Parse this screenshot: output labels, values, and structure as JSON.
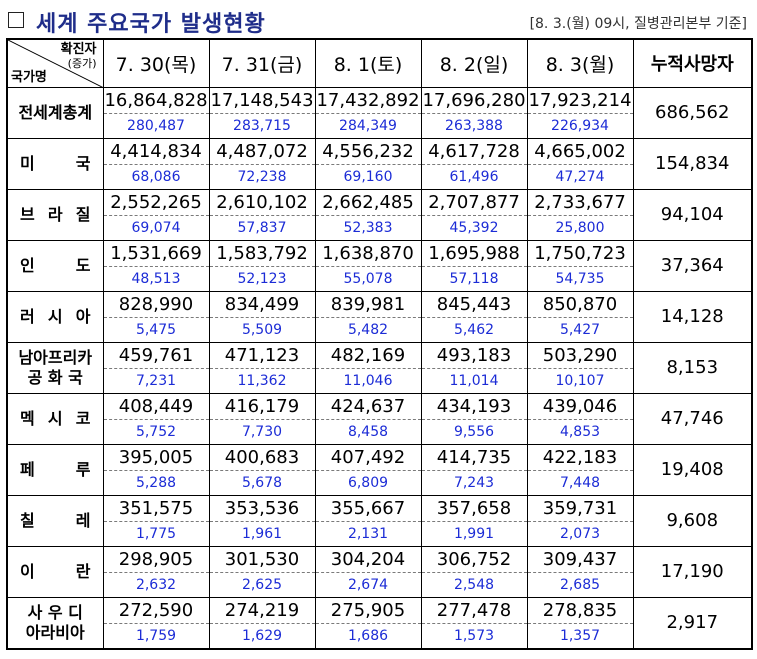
{
  "header": {
    "title": "세계 주요국가 발생현황",
    "source": "[8. 3.(월) 09시, 질병관리본부 기준]"
  },
  "table": {
    "corner": {
      "top": "확진자",
      "sub": "(증가)",
      "bottom": "국가명"
    },
    "dates": [
      "7. 30(목)",
      "7. 31(금)",
      "8. 1(토)",
      "8. 2(일)",
      "8. 3(월)"
    ],
    "cum_header": "누적사망자",
    "rows": [
      {
        "country": "전세계총계",
        "spread": false,
        "totals": [
          "16,864,828",
          "17,148,543",
          "17,432,892",
          "17,696,280",
          "17,923,214"
        ],
        "increases": [
          "280,487",
          "283,715",
          "284,349",
          "263,388",
          "226,934"
        ],
        "deaths": "686,562"
      },
      {
        "country": [
          "미",
          "국"
        ],
        "spread": true,
        "totals": [
          "4,414,834",
          "4,487,072",
          "4,556,232",
          "4,617,728",
          "4,665,002"
        ],
        "increases": [
          "68,086",
          "72,238",
          "69,160",
          "61,496",
          "47,274"
        ],
        "deaths": "154,834"
      },
      {
        "country": [
          "브",
          "라",
          "질"
        ],
        "spread": true,
        "totals": [
          "2,552,265",
          "2,610,102",
          "2,662,485",
          "2,707,877",
          "2,733,677"
        ],
        "increases": [
          "69,074",
          "57,837",
          "52,383",
          "45,392",
          "25,800"
        ],
        "deaths": "94,104"
      },
      {
        "country": [
          "인",
          "도"
        ],
        "spread": true,
        "totals": [
          "1,531,669",
          "1,583,792",
          "1,638,870",
          "1,695,988",
          "1,750,723"
        ],
        "increases": [
          "48,513",
          "52,123",
          "55,078",
          "57,118",
          "54,735"
        ],
        "deaths": "37,364"
      },
      {
        "country": [
          "러",
          "시",
          "아"
        ],
        "spread": true,
        "totals": [
          "828,990",
          "834,499",
          "839,981",
          "845,443",
          "850,870"
        ],
        "increases": [
          "5,475",
          "5,509",
          "5,482",
          "5,462",
          "5,427"
        ],
        "deaths": "14,128"
      },
      {
        "country_lines": [
          "남아프리카",
          "공 화 국"
        ],
        "spread": false,
        "totals": [
          "459,761",
          "471,123",
          "482,169",
          "493,183",
          "503,290"
        ],
        "increases": [
          "7,231",
          "11,362",
          "11,046",
          "11,014",
          "10,107"
        ],
        "deaths": "8,153"
      },
      {
        "country": [
          "멕",
          "시",
          "코"
        ],
        "spread": true,
        "totals": [
          "408,449",
          "416,179",
          "424,637",
          "434,193",
          "439,046"
        ],
        "increases": [
          "5,752",
          "7,730",
          "8,458",
          "9,556",
          "4,853"
        ],
        "deaths": "47,746"
      },
      {
        "country": [
          "페",
          "루"
        ],
        "spread": true,
        "totals": [
          "395,005",
          "400,683",
          "407,492",
          "414,735",
          "422,183"
        ],
        "increases": [
          "5,288",
          "5,678",
          "6,809",
          "7,243",
          "7,448"
        ],
        "deaths": "19,408"
      },
      {
        "country": [
          "칠",
          "레"
        ],
        "spread": true,
        "totals": [
          "351,575",
          "353,536",
          "355,667",
          "357,658",
          "359,731"
        ],
        "increases": [
          "1,775",
          "1,961",
          "2,131",
          "1,991",
          "2,073"
        ],
        "deaths": "9,608"
      },
      {
        "country": [
          "이",
          "란"
        ],
        "spread": true,
        "totals": [
          "298,905",
          "301,530",
          "304,204",
          "306,752",
          "309,437"
        ],
        "increases": [
          "2,632",
          "2,625",
          "2,674",
          "2,548",
          "2,685"
        ],
        "deaths": "17,190"
      },
      {
        "country_lines": [
          "사 우 디",
          "아라비아"
        ],
        "spread": false,
        "totals": [
          "272,590",
          "274,219",
          "275,905",
          "277,478",
          "278,835"
        ],
        "increases": [
          "1,759",
          "1,629",
          "1,686",
          "1,573",
          "1,357"
        ],
        "deaths": "2,917"
      }
    ]
  }
}
